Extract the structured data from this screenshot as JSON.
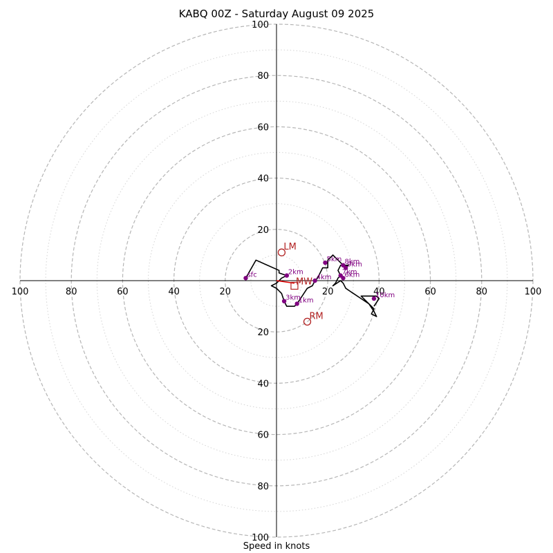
{
  "chart_data": {
    "type": "hodograph",
    "title": "KABQ 00Z - Saturday August 09 2025",
    "xlabel": "Speed in knots",
    "axis_range": [
      -100,
      100
    ],
    "rings_major": [
      20,
      40,
      60,
      80,
      100
    ],
    "rings_minor": [
      10,
      30,
      50,
      70,
      90
    ],
    "tick_values": [
      20,
      40,
      60,
      80,
      100
    ],
    "tick_labels": [
      "20",
      "40",
      "60",
      "80",
      "100"
    ],
    "trace": [
      [
        -12,
        1
      ],
      [
        -8,
        8
      ],
      [
        1,
        4
      ],
      [
        1,
        3
      ],
      [
        4,
        2
      ],
      [
        2,
        1
      ],
      [
        0,
        -1
      ],
      [
        -2,
        -2
      ],
      [
        0,
        -3
      ],
      [
        2,
        -5
      ],
      [
        3,
        -8
      ],
      [
        4,
        -10
      ],
      [
        7,
        -10
      ],
      [
        8,
        -9
      ],
      [
        10,
        -6
      ],
      [
        12,
        -3
      ],
      [
        14,
        -2
      ],
      [
        15,
        0
      ],
      [
        16,
        1
      ],
      [
        18,
        5
      ],
      [
        20,
        5
      ],
      [
        20,
        8
      ],
      [
        22,
        10
      ],
      [
        24,
        8
      ],
      [
        26,
        6
      ],
      [
        27,
        5
      ],
      [
        28,
        6
      ],
      [
        25,
        6
      ],
      [
        24,
        4
      ],
      [
        25,
        2
      ],
      [
        24,
        1
      ],
      [
        23,
        -1
      ],
      [
        22,
        -2
      ],
      [
        25,
        0
      ],
      [
        26,
        -1
      ],
      [
        27,
        -3
      ],
      [
        30,
        -5
      ],
      [
        33,
        -7
      ],
      [
        36,
        -9
      ],
      [
        38,
        -12
      ],
      [
        39,
        -14
      ],
      [
        37,
        -13
      ],
      [
        38,
        -11
      ],
      [
        36,
        -9
      ],
      [
        33,
        -6
      ],
      [
        39,
        -6
      ],
      [
        40,
        -7
      ],
      [
        38,
        -10
      ]
    ],
    "height_labels": [
      {
        "label": "sfc",
        "u": -12,
        "v": 1
      },
      {
        "label": "1km",
        "u": 8,
        "v": -9
      },
      {
        "label": "2km",
        "u": 4,
        "v": 2
      },
      {
        "label": "3km",
        "u": 3,
        "v": -8
      },
      {
        "label": "4km",
        "u": 15,
        "v": 0
      },
      {
        "label": "5km",
        "u": 19,
        "v": 7
      },
      {
        "label": "6km",
        "u": 26,
        "v": 1
      },
      {
        "label": "7km",
        "u": 25,
        "v": 2
      },
      {
        "label": "8km",
        "u": 26,
        "v": 6
      },
      {
        "label": "9km",
        "u": 27,
        "v": 5
      },
      {
        "label": "10km",
        "u": 38,
        "v": -7
      }
    ],
    "motions": [
      {
        "label": "LM",
        "u": 2,
        "v": 11
      },
      {
        "label": "RM",
        "u": 12,
        "v": -16
      }
    ],
    "mean_wind": {
      "label": "MW",
      "u": 7,
      "v": -2
    },
    "shear_vector": [
      [
        0,
        0
      ],
      [
        7,
        -1
      ]
    ],
    "colors": {
      "trace": "#000000",
      "height_points": "#800080",
      "motion": "#b22222",
      "shear": "#e00000",
      "major_rings": "#b5b5b5",
      "minor_rings": "#d3d3d3"
    }
  }
}
